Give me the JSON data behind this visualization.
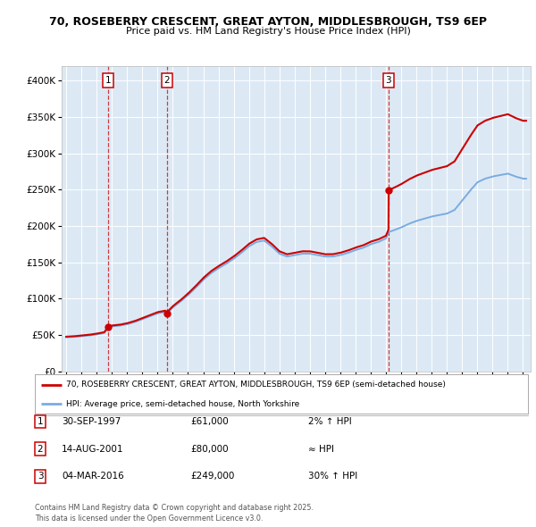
{
  "title_line1": "70, ROSEBERRY CRESCENT, GREAT AYTON, MIDDLESBROUGH, TS9 6EP",
  "title_line2": "Price paid vs. HM Land Registry's House Price Index (HPI)",
  "transactions": [
    {
      "num": 1,
      "date_str": "30-SEP-1997",
      "year": 1997.75,
      "price": 61000,
      "label": "2% ↑ HPI"
    },
    {
      "num": 2,
      "date_str": "14-AUG-2001",
      "year": 2001.62,
      "price": 80000,
      "label": "≈ HPI"
    },
    {
      "num": 3,
      "date_str": "04-MAR-2016",
      "year": 2016.17,
      "price": 249000,
      "label": "30% ↑ HPI"
    }
  ],
  "legend_line1": "70, ROSEBERRY CRESCENT, GREAT AYTON, MIDDLESBROUGH, TS9 6EP (semi-detached house)",
  "legend_line2": "HPI: Average price, semi-detached house, North Yorkshire",
  "footnote": "Contains HM Land Registry data © Crown copyright and database right 2025.\nThis data is licensed under the Open Government Licence v3.0.",
  "line_color_red": "#cc0000",
  "line_color_blue": "#7aace0",
  "background_color": "#dce9f5",
  "ylim": [
    0,
    420000
  ],
  "yticks": [
    0,
    50000,
    100000,
    150000,
    200000,
    250000,
    300000,
    350000,
    400000
  ],
  "xlim_start": 1994.7,
  "xlim_end": 2025.5,
  "hpi_knots_x": [
    1995.0,
    1995.5,
    1996.0,
    1996.5,
    1997.0,
    1997.5,
    1997.75,
    1998.0,
    1998.5,
    1999.0,
    1999.5,
    2000.0,
    2000.5,
    2001.0,
    2001.5,
    2001.62,
    2002.0,
    2002.5,
    2003.0,
    2003.5,
    2004.0,
    2004.5,
    2005.0,
    2005.5,
    2006.0,
    2006.5,
    2007.0,
    2007.5,
    2008.0,
    2008.5,
    2009.0,
    2009.5,
    2010.0,
    2010.5,
    2011.0,
    2011.5,
    2012.0,
    2012.5,
    2013.0,
    2013.5,
    2014.0,
    2014.5,
    2015.0,
    2015.5,
    2016.0,
    2016.17,
    2016.5,
    2017.0,
    2017.5,
    2018.0,
    2018.5,
    2019.0,
    2019.5,
    2020.0,
    2020.5,
    2021.0,
    2021.5,
    2022.0,
    2022.5,
    2023.0,
    2023.5,
    2024.0,
    2024.5,
    2025.0
  ],
  "hpi_knots_y": [
    47000,
    47500,
    48500,
    49500,
    51000,
    53000,
    59800,
    62000,
    63000,
    65000,
    68000,
    72000,
    76000,
    80000,
    82000,
    80000,
    88000,
    96000,
    105000,
    115000,
    126000,
    135000,
    142000,
    148000,
    155000,
    163000,
    172000,
    178000,
    180000,
    172000,
    162000,
    158000,
    160000,
    162000,
    162000,
    160000,
    158000,
    158000,
    160000,
    163000,
    167000,
    170000,
    175000,
    178000,
    183000,
    191500,
    194000,
    198000,
    203000,
    207000,
    210000,
    213000,
    215000,
    217000,
    222000,
    235000,
    248000,
    260000,
    265000,
    268000,
    270000,
    272000,
    268000,
    265000
  ],
  "red_scale_before_t3": 1.02,
  "red_scale_after_t3": 1.3,
  "t3_hpi": 191500
}
